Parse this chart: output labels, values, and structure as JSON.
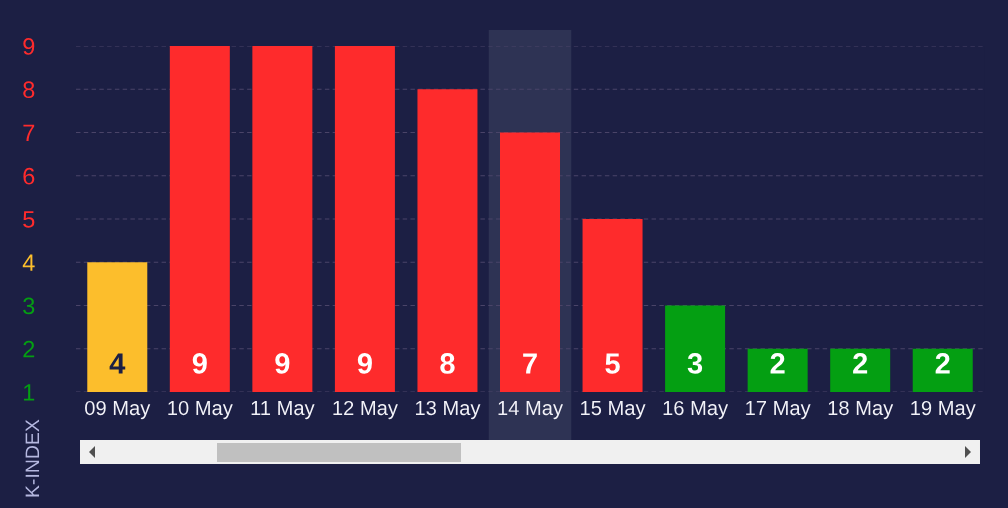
{
  "chart_data": {
    "type": "bar",
    "ylabel": "K-INDEX",
    "categories": [
      "09 May",
      "10 May",
      "11 May",
      "12 May",
      "13 May",
      "14 May",
      "15 May",
      "16 May",
      "17 May",
      "18 May",
      "19 May"
    ],
    "values": [
      4,
      9,
      9,
      9,
      8,
      7,
      5,
      3,
      2,
      2,
      2
    ],
    "colors": [
      "#fcbe2c",
      "#fe2b2c",
      "#fe2b2c",
      "#fe2b2c",
      "#fe2b2c",
      "#fe2b2c",
      "#fe2b2c",
      "#049f12",
      "#049f12",
      "#049f12",
      "#049f12"
    ],
    "ylim": [
      1,
      9
    ],
    "yticks": [
      1,
      2,
      3,
      4,
      5,
      6,
      7,
      8,
      9
    ],
    "grid": "y",
    "data_labels": true,
    "bands": [
      {
        "axis": "x",
        "from": "14 May",
        "to": "14 May",
        "color": "#2e3354"
      }
    ]
  }
}
